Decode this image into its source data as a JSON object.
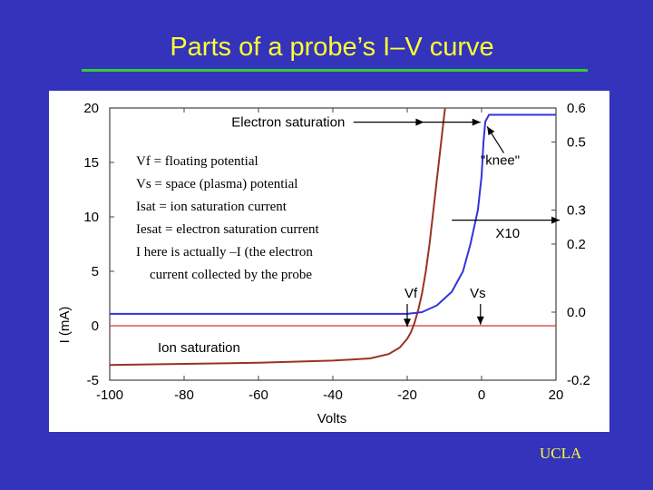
{
  "slide": {
    "title": "Parts of a probe’s  I–V  curve",
    "footer": "UCLA"
  },
  "colors": {
    "background": "#3333bb",
    "title": "#ffff33",
    "rule": "#33cc33",
    "curve_linear": "#993322",
    "curve_x10": "#3333dd",
    "zero_line": "#dd3333"
  },
  "chart_data": {
    "type": "line",
    "xlabel": "Volts",
    "ylabel": "I (mA)",
    "xlim": [
      -100,
      20
    ],
    "ylim_left": [
      -5,
      20
    ],
    "ylim_right": [
      -0.2,
      0.6
    ],
    "xticks": [
      "-100",
      "-80",
      "-60",
      "-40",
      "-20",
      "0",
      "20"
    ],
    "yticks_left": [
      "-5",
      "0",
      "5",
      "10",
      "15",
      "20"
    ],
    "yticks_right": [
      "-0.2",
      "0.0",
      "0.2",
      "0.3",
      "0.5",
      "0.6"
    ],
    "series": [
      {
        "name": "",
        "axis": "left",
        "x": [
          -100,
          -80,
          -60,
          -40,
          -30,
          -25,
          -22,
          -20,
          -19,
          -18,
          -17,
          -16,
          -15,
          -14,
          -13,
          -12,
          -11,
          -10,
          -9
        ],
        "y": [
          -3.6,
          -3.5,
          -3.4,
          -3.2,
          -3.0,
          -2.6,
          -2.0,
          -1.2,
          -0.6,
          0.3,
          1.5,
          3.0,
          5.0,
          7.5,
          10.5,
          13.5,
          16.5,
          19.5,
          22
        ]
      },
      {
        "name": "X10",
        "axis": "right",
        "x": [
          -100,
          -30,
          -20,
          -16,
          -12,
          -8,
          -5,
          -3,
          -1,
          0,
          0.5,
          1,
          2,
          20
        ],
        "y": [
          -0.005,
          -0.005,
          -0.005,
          0.0,
          0.02,
          0.06,
          0.12,
          0.2,
          0.3,
          0.4,
          0.5,
          0.56,
          0.58,
          0.58
        ]
      }
    ],
    "reference_line": {
      "y": 0
    },
    "annotations": [
      {
        "text": "Electron saturation",
        "x": -52,
        "y": 18.7
      },
      {
        "text": "\"knee\"",
        "x": 5,
        "y": 15.2
      },
      {
        "text": "X10",
        "x": 7,
        "y": 8.5
      },
      {
        "text": "Vf",
        "x": -19,
        "y": 3.0
      },
      {
        "text": "Vs",
        "x": -1,
        "y": 3.0
      },
      {
        "text": "Ion saturation",
        "x": -76,
        "y": -2.0
      }
    ]
  },
  "notes": [
    "Vf = floating potential",
    "Vs = space (plasma) potential",
    "Isat = ion saturation current",
    "Iesat = electron saturation current",
    "I here is actually –I (the electron",
    "current collected by the probe"
  ]
}
